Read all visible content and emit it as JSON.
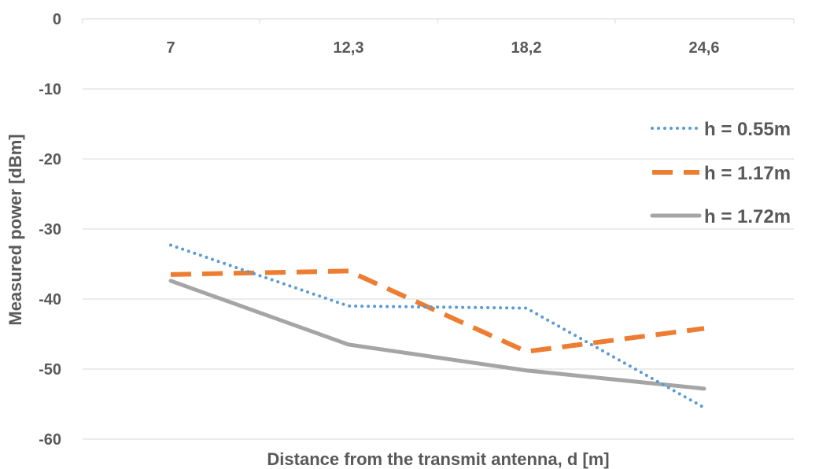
{
  "chart_data": {
    "type": "line",
    "title": "",
    "xlabel": "Distance from the transmit antenna, d [m]",
    "ylabel": "Measured power [dBm]",
    "categories": [
      "7",
      "12,3",
      "18,2",
      "24,6"
    ],
    "ylim": [
      -60,
      0
    ],
    "yticks": [
      "0",
      "-10",
      "-20",
      "-30",
      "-40",
      "-50",
      "-60"
    ],
    "ytick_values": [
      0,
      -10,
      -20,
      -30,
      -40,
      -50,
      -60
    ],
    "grid": true,
    "legend_position": "right",
    "series": [
      {
        "name": "h = 0.55m",
        "style": "dotted",
        "color": "#5b9bd5",
        "values": [
          -32.3,
          -41.0,
          -41.3,
          -55.5
        ]
      },
      {
        "name": "h = 1.17m",
        "style": "dashed",
        "color": "#ed7d31",
        "values": [
          -36.5,
          -36.0,
          -47.5,
          -44.2
        ]
      },
      {
        "name": "h = 1.72m",
        "style": "solid",
        "color": "#a5a5a5",
        "values": [
          -37.4,
          -46.5,
          -50.2,
          -52.8
        ]
      }
    ]
  }
}
